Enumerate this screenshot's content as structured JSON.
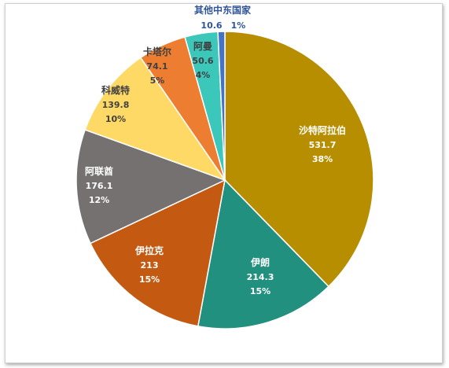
{
  "chart_data": {
    "type": "pie",
    "title": "",
    "slices": [
      {
        "name": "沙特阿拉伯",
        "value": "531.7",
        "percent": "38%",
        "color": "#B68E00",
        "labelColor": "#ffffff"
      },
      {
        "name": "伊朗",
        "value": "214.3",
        "percent": "15%",
        "color": "#22907F",
        "labelColor": "#ffffff"
      },
      {
        "name": "伊拉克",
        "value": "213",
        "percent": "15%",
        "color": "#C45912",
        "labelColor": "#ffffff"
      },
      {
        "name": "阿联酋",
        "value": "176.1",
        "percent": "12%",
        "color": "#767171",
        "labelColor": "#ffffff"
      },
      {
        "name": "科威特",
        "value": "139.8",
        "percent": "10%",
        "color": "#FFD966",
        "labelColor": "#404040"
      },
      {
        "name": "卡塔尔",
        "value": "74.1",
        "percent": "5%",
        "color": "#ED7D31",
        "labelColor": "#404040"
      },
      {
        "name": "阿曼",
        "value": "50.6",
        "percent": "4%",
        "color": "#3CC7BB",
        "labelColor": "#404040"
      },
      {
        "name": "其他中东国家",
        "value": "10.6",
        "percent": "1%",
        "color": "#4472C4",
        "labelColor": "#2F5597"
      }
    ]
  }
}
